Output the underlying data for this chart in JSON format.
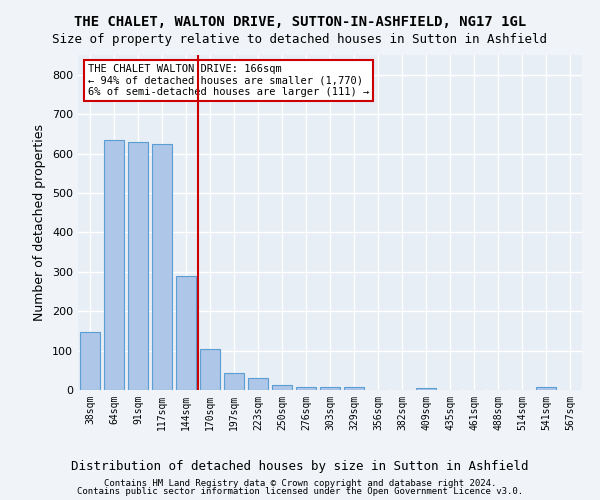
{
  "title": "THE CHALET, WALTON DRIVE, SUTTON-IN-ASHFIELD, NG17 1GL",
  "subtitle": "Size of property relative to detached houses in Sutton in Ashfield",
  "xlabel": "Distribution of detached houses by size in Sutton in Ashfield",
  "ylabel": "Number of detached properties",
  "footer_line1": "Contains HM Land Registry data © Crown copyright and database right 2024.",
  "footer_line2": "Contains public sector information licensed under the Open Government Licence v3.0.",
  "categories": [
    "38sqm",
    "64sqm",
    "91sqm",
    "117sqm",
    "144sqm",
    "170sqm",
    "197sqm",
    "223sqm",
    "250sqm",
    "276sqm",
    "303sqm",
    "329sqm",
    "356sqm",
    "382sqm",
    "409sqm",
    "435sqm",
    "461sqm",
    "488sqm",
    "514sqm",
    "541sqm",
    "567sqm"
  ],
  "values": [
    148,
    635,
    630,
    625,
    288,
    104,
    44,
    30,
    12,
    8,
    8,
    8,
    0,
    0,
    5,
    0,
    0,
    0,
    0,
    8,
    0
  ],
  "bar_color": "#aec6e8",
  "bar_edge_color": "#5a9fd4",
  "vline_x": 4.5,
  "vline_color": "#cc0000",
  "vline_label": "THE CHALET WALTON DRIVE: 166sqm",
  "annotation_line1": "THE CHALET WALTON DRIVE: 166sqm",
  "annotation_line2": "← 94% of detached houses are smaller (1,770)",
  "annotation_line3": "6% of semi-detached houses are larger (111) →",
  "annotation_box_color": "#cc0000",
  "ylim": [
    0,
    850
  ],
  "yticks": [
    0,
    100,
    200,
    300,
    400,
    500,
    600,
    700,
    800
  ],
  "background_color": "#e8eef5",
  "grid_color": "#ffffff",
  "title_fontsize": 10,
  "subtitle_fontsize": 9,
  "xlabel_fontsize": 9,
  "ylabel_fontsize": 9
}
